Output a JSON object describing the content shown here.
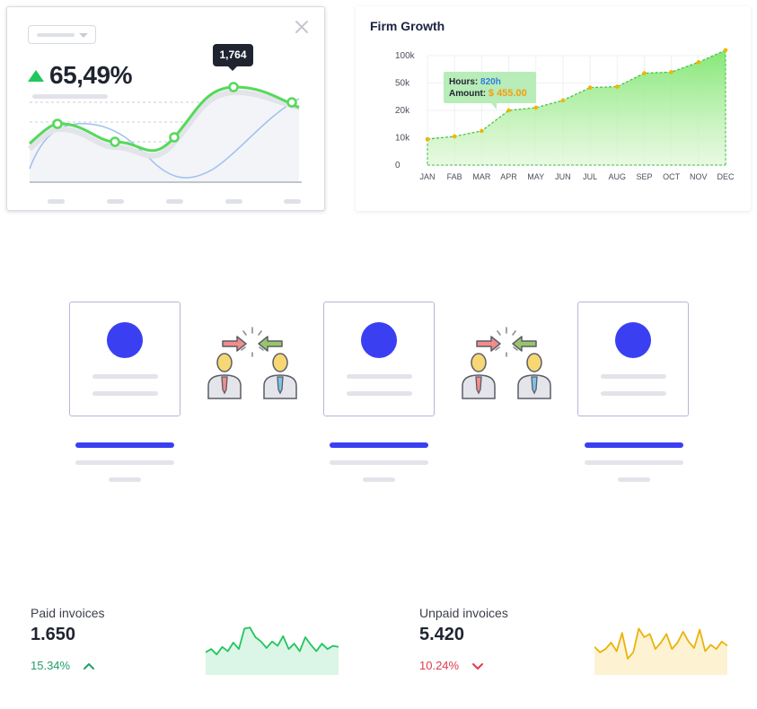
{
  "widget1": {
    "headline_value": "65,49%",
    "tooltip_value": "1,764",
    "trend_direction": "up",
    "accent_color": "#22c55e"
  },
  "firm_growth": {
    "title": "Firm Growth",
    "tooltip": {
      "hours_label": "Hours:",
      "hours_value": "820h",
      "amount_label": "Amount:",
      "amount_value": "$ 455.00"
    }
  },
  "chart_data": {
    "type": "area",
    "title": "Firm Growth",
    "categories": [
      "JAN",
      "FAB",
      "MAR",
      "APR",
      "MAY",
      "JUN",
      "JUL",
      "AUG",
      "SEP",
      "OCT",
      "NOV",
      "DEC"
    ],
    "y_ticks": [
      "100k",
      "50k",
      "20k",
      "10k",
      "0"
    ],
    "series": [
      {
        "values": [
          9.5,
          10.5,
          12.5,
          20,
          23,
          31,
          45,
          46,
          68,
          70,
          88,
          110
        ]
      }
    ],
    "grid": true,
    "line_color": "#22c55e",
    "fill_color": "#b8f0a8"
  },
  "connections": {
    "profile_count": 3,
    "accent_color": "#3b3ff2",
    "arrow_left_color": "#f07f7f",
    "arrow_right_color": "#7fb854"
  },
  "invoices": {
    "paid": {
      "label": "Paid invoices",
      "value": "1.650",
      "change": "15.34%",
      "direction": "up",
      "color": "#22a06b",
      "sparkline": [
        0.42,
        0.48,
        0.38,
        0.52,
        0.44,
        0.6,
        0.48,
        0.86,
        0.88,
        0.7,
        0.62,
        0.5,
        0.62,
        0.54,
        0.72,
        0.48,
        0.58,
        0.44,
        0.7,
        0.56,
        0.44,
        0.58,
        0.48,
        0.54,
        0.52
      ]
    },
    "unpaid": {
      "label": "Unpaid invoices",
      "value": "5.420",
      "change": "10.24%",
      "direction": "down",
      "color": "#e23b4a",
      "sparkline": [
        0.52,
        0.42,
        0.48,
        0.6,
        0.44,
        0.78,
        0.3,
        0.42,
        0.86,
        0.7,
        0.76,
        0.48,
        0.6,
        0.76,
        0.48,
        0.6,
        0.8,
        0.62,
        0.5,
        0.84,
        0.44,
        0.56,
        0.48,
        0.62,
        0.54
      ]
    }
  }
}
